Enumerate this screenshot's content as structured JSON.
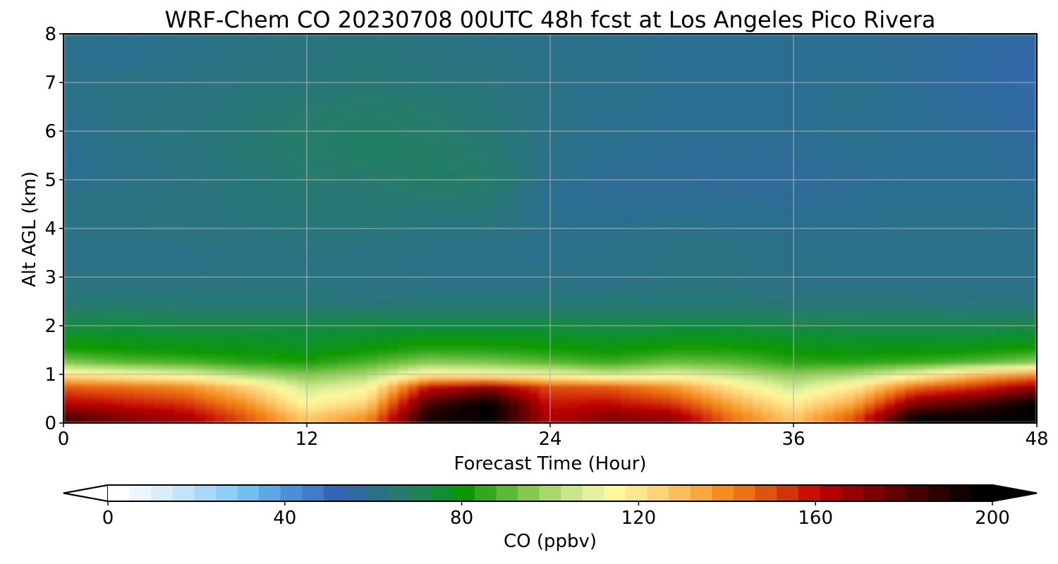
{
  "chart_data": {
    "type": "heatmap",
    "title": "WRF-Chem CO  20230708 00UTC 48h fcst at Los Angeles Pico Rivera",
    "xlabel": "Forecast Time (Hour)",
    "ylabel": "Alt AGL (km)",
    "xlim": [
      0,
      48
    ],
    "ylim": [
      0,
      8
    ],
    "x_ticks": [
      "0",
      "12",
      "24",
      "36",
      "48"
    ],
    "y_ticks": [
      "0",
      "1",
      "2",
      "3",
      "4",
      "5",
      "6",
      "7",
      "8"
    ],
    "grid": true,
    "x": [
      0,
      3,
      6,
      9,
      12,
      15,
      18,
      21,
      24,
      27,
      30,
      33,
      36,
      39,
      42,
      45,
      48
    ],
    "y": [
      0.1,
      0.4,
      0.75,
      1.0,
      1.25,
      1.5,
      1.75,
      2.0,
      2.25,
      2.5,
      3.0,
      3.5,
      4.0,
      4.5,
      5.0,
      5.5,
      6.0,
      6.5,
      7.0,
      7.5,
      8.0
    ],
    "z": [
      [
        185,
        175,
        168,
        150,
        128,
        140,
        195,
        200,
        165,
        175,
        172,
        145,
        128,
        150,
        200,
        200,
        200
      ],
      [
        165,
        160,
        155,
        140,
        115,
        125,
        185,
        200,
        160,
        162,
        155,
        135,
        118,
        135,
        175,
        185,
        200
      ],
      [
        148,
        145,
        140,
        125,
        105,
        112,
        160,
        170,
        150,
        148,
        138,
        120,
        105,
        118,
        145,
        155,
        170
      ],
      [
        120,
        115,
        110,
        100,
        94,
        100,
        118,
        115,
        112,
        105,
        110,
        104,
        96,
        100,
        112,
        130,
        140
      ],
      [
        95,
        90,
        88,
        84,
        82,
        88,
        96,
        94,
        90,
        86,
        92,
        90,
        84,
        84,
        86,
        90,
        96
      ],
      [
        82,
        80,
        79,
        78,
        77,
        80,
        84,
        83,
        81,
        79,
        82,
        82,
        79,
        78,
        78,
        79,
        82
      ],
      [
        77,
        77,
        76,
        76,
        75,
        76,
        78,
        78,
        77,
        76,
        77,
        77,
        76,
        75,
        75,
        75,
        76
      ],
      [
        72,
        73,
        72,
        72,
        72,
        73,
        73,
        73,
        73,
        72,
        73,
        73,
        72,
        71,
        71,
        71,
        72
      ],
      [
        68,
        69,
        68,
        68,
        68,
        68,
        68,
        68,
        68,
        68,
        68,
        68,
        67,
        67,
        67,
        66,
        66
      ],
      [
        63,
        64,
        63,
        63,
        63,
        62,
        63,
        63,
        63,
        63,
        63,
        63,
        62,
        62,
        62,
        61,
        61
      ],
      [
        61,
        61,
        61,
        61,
        61,
        61,
        60,
        60,
        60,
        60,
        61,
        61,
        60,
        60,
        60,
        60,
        59
      ],
      [
        60,
        60,
        60,
        61,
        61,
        61,
        60,
        60,
        59,
        60,
        61,
        61,
        60,
        59,
        59,
        59,
        59
      ],
      [
        61,
        61,
        62,
        62,
        63,
        63,
        62,
        62,
        59,
        59,
        60,
        59,
        59,
        59,
        60,
        60,
        59
      ],
      [
        61,
        61,
        62,
        63,
        64,
        64,
        64,
        64,
        58,
        57,
        57,
        58,
        57,
        58,
        59,
        59,
        58
      ],
      [
        58,
        60,
        61,
        63,
        65,
        65,
        67,
        66,
        59,
        57,
        57,
        56,
        56,
        57,
        58,
        58,
        57
      ],
      [
        58,
        60,
        62,
        64,
        66,
        67,
        67,
        65,
        60,
        58,
        57,
        57,
        57,
        58,
        58,
        58,
        56
      ],
      [
        58,
        61,
        62,
        64,
        66,
        67,
        66,
        64,
        60,
        59,
        58,
        58,
        58,
        59,
        58,
        57,
        55
      ],
      [
        60,
        61,
        62,
        63,
        65,
        66,
        65,
        63,
        60,
        59,
        58,
        58,
        58,
        59,
        58,
        56,
        54
      ],
      [
        60,
        61,
        61,
        62,
        63,
        64,
        63,
        62,
        60,
        59,
        58,
        58,
        58,
        59,
        57,
        55,
        53
      ],
      [
        59,
        58,
        60,
        61,
        62,
        63,
        62,
        61,
        60,
        59,
        58,
        58,
        58,
        58,
        57,
        55,
        53
      ],
      [
        60,
        58,
        60,
        61,
        62,
        62,
        61,
        60,
        59,
        59,
        58,
        58,
        58,
        58,
        57,
        56,
        55
      ]
    ],
    "colorbar": {
      "label": "CO  (ppbv)",
      "min": 0,
      "max": 200,
      "ticks": [
        "0",
        "40",
        "80",
        "120",
        "160",
        "200"
      ],
      "extend": "both",
      "colors": [
        "#ffffff",
        "#eef6fd",
        "#d9eefb",
        "#c2e4f9",
        "#a9d9f7",
        "#8fcef6",
        "#6fc1f4",
        "#5aa9e6",
        "#4a90d9",
        "#3f7ccc",
        "#3366b8",
        "#2f6aa0",
        "#2a7187",
        "#277a6f",
        "#1e8453",
        "#0d9030",
        "#0a9900",
        "#33a81f",
        "#5cba35",
        "#85c94f",
        "#a8d86a",
        "#c9e688",
        "#e4f29f",
        "#fff79a",
        "#fde68c",
        "#fcd377",
        "#fbbd5c",
        "#f9a63d",
        "#f48d1e",
        "#ec7214",
        "#e0520f",
        "#d4330a",
        "#c80e05",
        "#b30000",
        "#980000",
        "#7d0000",
        "#620000",
        "#470000",
        "#2b0000",
        "#140000",
        "#000000"
      ],
      "under_color": "#ffffff",
      "over_color": "#000000"
    }
  }
}
